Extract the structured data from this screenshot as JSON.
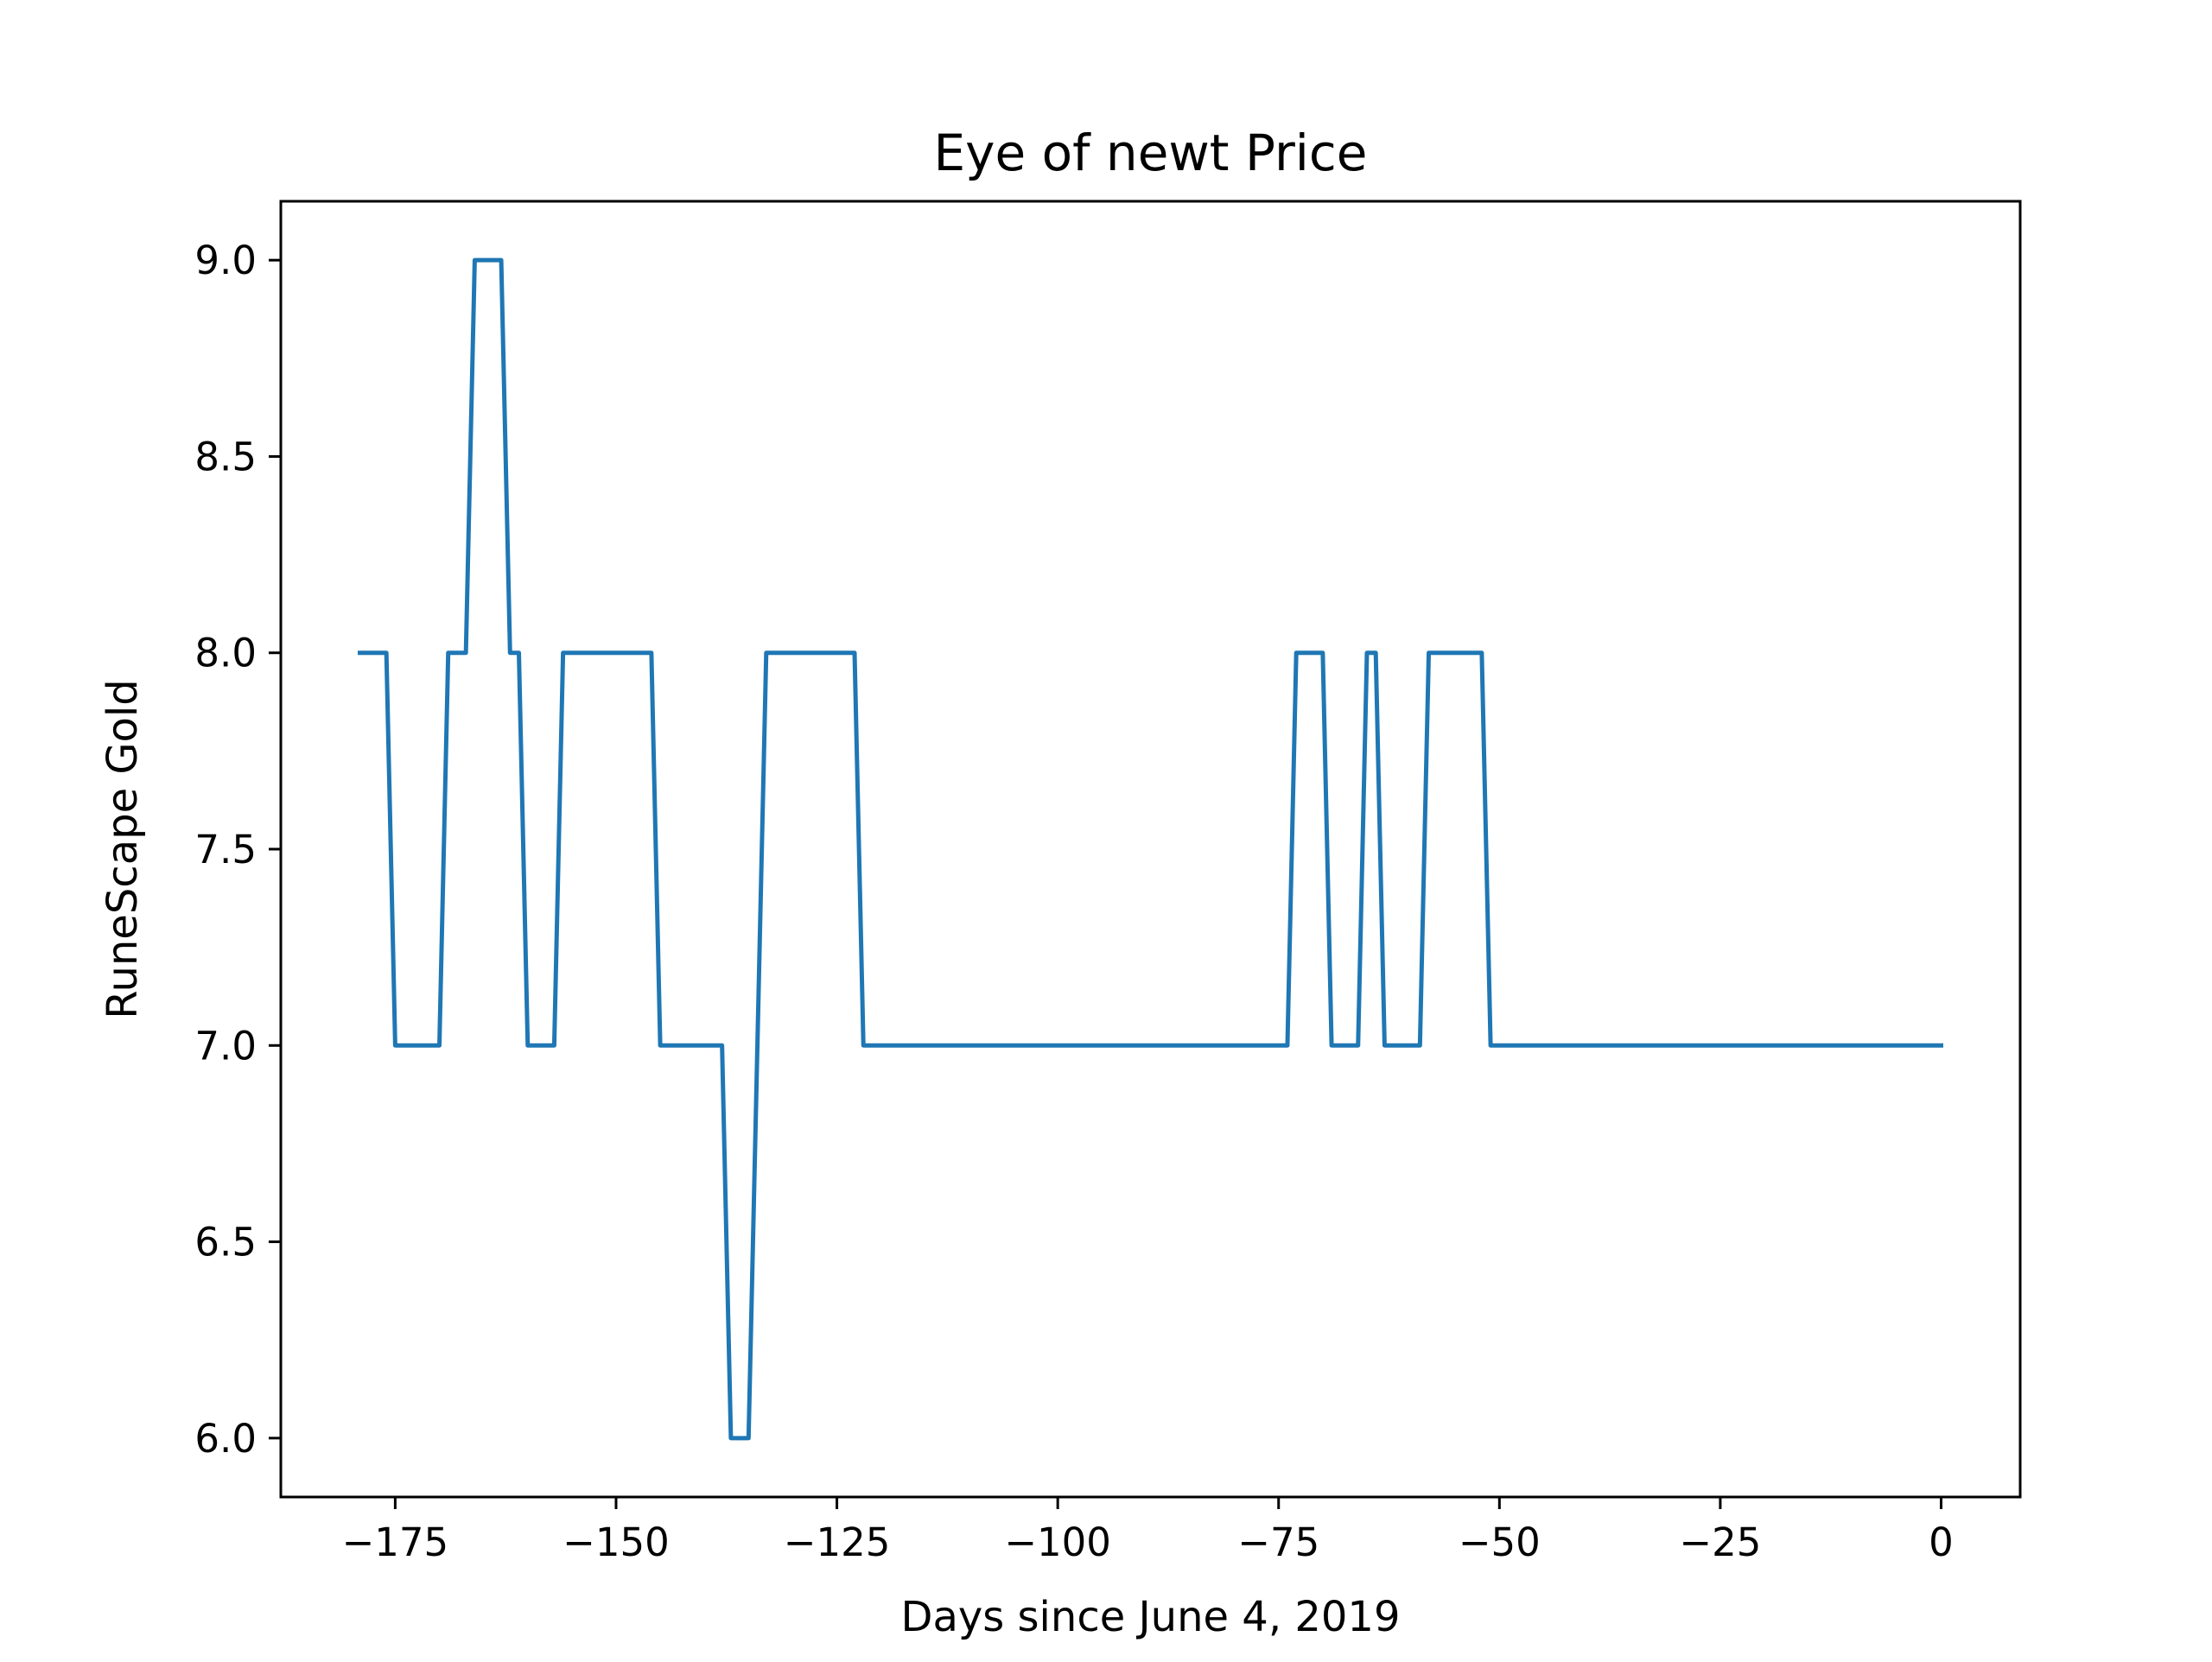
{
  "chart_data": {
    "type": "line",
    "title": "Eye of newt Price",
    "xlabel": "Days since June 4, 2019",
    "ylabel": "RuneScape Gold",
    "xlim": [
      -187.95,
      8.95
    ],
    "ylim": [
      5.85,
      9.15
    ],
    "grid": false,
    "legend": "none",
    "xticks": [
      -175,
      -150,
      -125,
      -100,
      -75,
      -50,
      -25,
      0
    ],
    "xtick_labels": [
      "−175",
      "−150",
      "−125",
      "−100",
      "−75",
      "−50",
      "−25",
      "0"
    ],
    "yticks": [
      6.0,
      6.5,
      7.0,
      7.5,
      8.0,
      8.5,
      9.0
    ],
    "ytick_labels": [
      "6.0",
      "6.5",
      "7.0",
      "7.5",
      "8.0",
      "8.5",
      "9.0"
    ],
    "series": [
      {
        "color": "#1f77b4",
        "x": [
          -179,
          -176,
          -175,
          -170,
          -169,
          -167,
          -166,
          -163,
          -162,
          -161,
          -160,
          -157,
          -156,
          -146,
          -145,
          -138,
          -137,
          -135,
          -133,
          -123,
          -122,
          -74,
          -73,
          -70,
          -69,
          -66,
          -65,
          -64,
          -63,
          -59,
          -58,
          -52,
          -51,
          0
        ],
        "y": [
          8,
          8,
          7,
          7,
          8,
          8,
          9,
          9,
          8,
          8,
          7,
          7,
          8,
          8,
          7,
          7,
          6,
          6,
          8,
          8,
          7,
          7,
          8,
          8,
          7,
          7,
          8,
          8,
          7,
          7,
          8,
          8,
          7,
          7
        ]
      }
    ]
  }
}
